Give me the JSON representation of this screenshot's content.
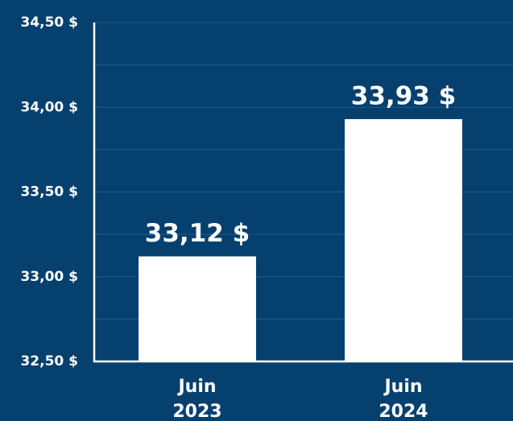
{
  "chart_data": {
    "type": "bar",
    "categories": [
      [
        "Juin",
        "2023"
      ],
      [
        "Juin",
        "2024"
      ]
    ],
    "values": [
      33.12,
      33.93
    ],
    "value_labels": [
      "33,12 $",
      "33,93 $"
    ],
    "color": "#ffffff",
    "ylim": [
      32.5,
      34.5
    ],
    "yticks": [
      {
        "value": 32.5,
        "label": "32,50 $"
      },
      {
        "value": 33,
        "label": "33,00 $"
      },
      {
        "value": 33.5,
        "label": "33,50 $"
      },
      {
        "value": 34,
        "label": "34,00 $"
      },
      {
        "value": 34.5,
        "label": "34,50 $"
      }
    ],
    "minor_yticks": [
      32.75,
      33.25,
      33.75,
      34.25
    ],
    "grid": true
  }
}
